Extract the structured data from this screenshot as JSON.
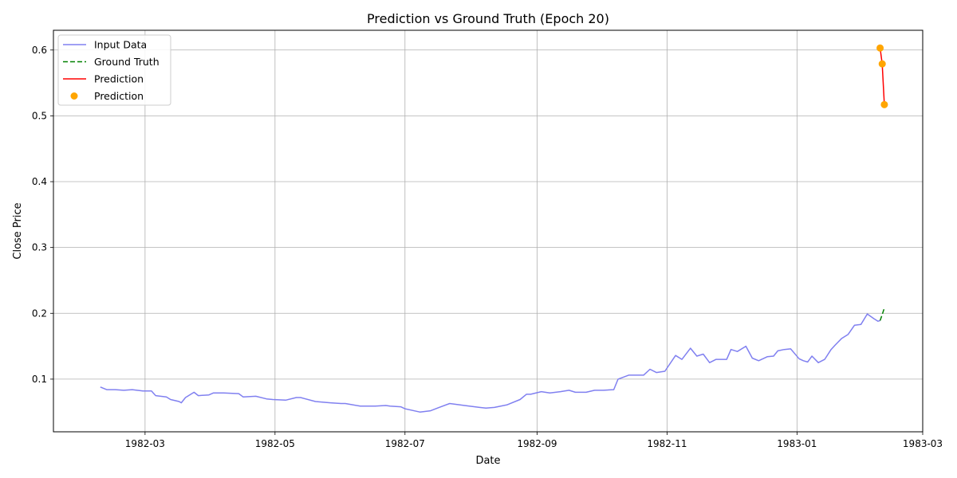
{
  "chart_data": {
    "type": "line",
    "title": "Prediction vs Ground Truth (Epoch 20)",
    "xlabel": "Date",
    "ylabel": "Close Price",
    "xlim": [
      "1982-01-17",
      "1983-03-01"
    ],
    "ylim": [
      0.02,
      0.63
    ],
    "x_ticks": [
      "1982-03-01",
      "1982-05-01",
      "1982-07-01",
      "1982-09-01",
      "1982-11-01",
      "1983-01-01",
      "1983-03-01"
    ],
    "x_tick_labels": [
      "1982-03",
      "1982-05",
      "1982-07",
      "1982-09",
      "1982-11",
      "1983-01",
      "1983-03"
    ],
    "y_ticks": [
      0.1,
      0.2,
      0.3,
      0.4,
      0.5,
      0.6
    ],
    "y_tick_labels": [
      "0.1",
      "0.2",
      "0.3",
      "0.4",
      "0.5",
      "0.6"
    ],
    "grid": true,
    "legend_position": "top-left",
    "colors": {
      "input": "#8080f0",
      "ground_truth": "#008000",
      "prediction_line": "#ff0000",
      "prediction_points": "#ffa500",
      "grid": "#b0b0b0"
    },
    "series": [
      {
        "name": "Input Data",
        "style": "line",
        "x": [
          "1982-02-08",
          "1982-02-11",
          "1982-02-15",
          "1982-02-19",
          "1982-02-23",
          "1982-02-28",
          "1982-03-04",
          "1982-03-06",
          "1982-03-11",
          "1982-03-13",
          "1982-03-17",
          "1982-03-18",
          "1982-03-20",
          "1982-03-24",
          "1982-03-26",
          "1982-03-31",
          "1982-04-02",
          "1982-04-07",
          "1982-04-14",
          "1982-04-16",
          "1982-04-22",
          "1982-04-27",
          "1982-04-30",
          "1982-05-06",
          "1982-05-11",
          "1982-05-13",
          "1982-05-20",
          "1982-05-27",
          "1982-06-01",
          "1982-06-03",
          "1982-06-10",
          "1982-06-17",
          "1982-06-22",
          "1982-06-24",
          "1982-06-29",
          "1982-07-01",
          "1982-07-08",
          "1982-07-13",
          "1982-07-17",
          "1982-07-22",
          "1982-07-29",
          "1982-08-05",
          "1982-08-08",
          "1982-08-12",
          "1982-08-18",
          "1982-08-24",
          "1982-08-27",
          "1982-08-29",
          "1982-09-03",
          "1982-09-07",
          "1982-09-12",
          "1982-09-16",
          "1982-09-19",
          "1982-09-24",
          "1982-09-28",
          "1982-10-02",
          "1982-10-07",
          "1982-10-09",
          "1982-10-14",
          "1982-10-17",
          "1982-10-21",
          "1982-10-24",
          "1982-10-27",
          "1982-10-31",
          "1982-11-05",
          "1982-11-08",
          "1982-11-12",
          "1982-11-15",
          "1982-11-18",
          "1982-11-21",
          "1982-11-24",
          "1982-11-29",
          "1982-12-01",
          "1982-12-04",
          "1982-12-08",
          "1982-12-11",
          "1982-12-14",
          "1982-12-18",
          "1982-12-21",
          "1982-12-23",
          "1982-12-26",
          "1982-12-29",
          "1983-01-02",
          "1983-01-04",
          "1983-01-06",
          "1983-01-08",
          "1983-01-11",
          "1983-01-14",
          "1983-01-17",
          "1983-01-19",
          "1983-01-22",
          "1983-01-25",
          "1983-01-28",
          "1983-01-31",
          "1983-02-03",
          "1983-02-06",
          "1983-02-08",
          "1983-02-09"
        ],
        "values": [
          0.088,
          0.084,
          0.084,
          0.083,
          0.084,
          0.082,
          0.082,
          0.075,
          0.073,
          0.069,
          0.066,
          0.064,
          0.072,
          0.08,
          0.075,
          0.076,
          0.079,
          0.079,
          0.078,
          0.073,
          0.074,
          0.07,
          0.069,
          0.068,
          0.072,
          0.072,
          0.066,
          0.064,
          0.063,
          0.063,
          0.059,
          0.059,
          0.06,
          0.059,
          0.058,
          0.055,
          0.05,
          0.052,
          0.057,
          0.063,
          0.06,
          0.057,
          0.056,
          0.057,
          0.061,
          0.069,
          0.077,
          0.077,
          0.081,
          0.079,
          0.081,
          0.083,
          0.08,
          0.08,
          0.083,
          0.083,
          0.084,
          0.1,
          0.106,
          0.106,
          0.106,
          0.115,
          0.11,
          0.112,
          0.136,
          0.13,
          0.147,
          0.135,
          0.138,
          0.125,
          0.13,
          0.13,
          0.145,
          0.142,
          0.15,
          0.132,
          0.128,
          0.134,
          0.135,
          0.143,
          0.145,
          0.146,
          0.131,
          0.128,
          0.126,
          0.135,
          0.125,
          0.13,
          0.145,
          0.152,
          0.162,
          0.168,
          0.182,
          0.183,
          0.199,
          0.192,
          0.188,
          0.189
        ]
      },
      {
        "name": "Ground Truth",
        "style": "dashed",
        "x": [
          "1983-02-09",
          "1983-02-10",
          "1983-02-11"
        ],
        "values": [
          0.189,
          0.198,
          0.208
        ]
      },
      {
        "name": "Prediction",
        "style": "line",
        "x": [
          "1983-02-09",
          "1983-02-10",
          "1983-02-11"
        ],
        "values": [
          0.603,
          0.579,
          0.517
        ]
      },
      {
        "name": "Prediction",
        "style": "scatter",
        "x": [
          "1983-02-09",
          "1983-02-10",
          "1983-02-11"
        ],
        "values": [
          0.603,
          0.579,
          0.517
        ]
      }
    ]
  }
}
